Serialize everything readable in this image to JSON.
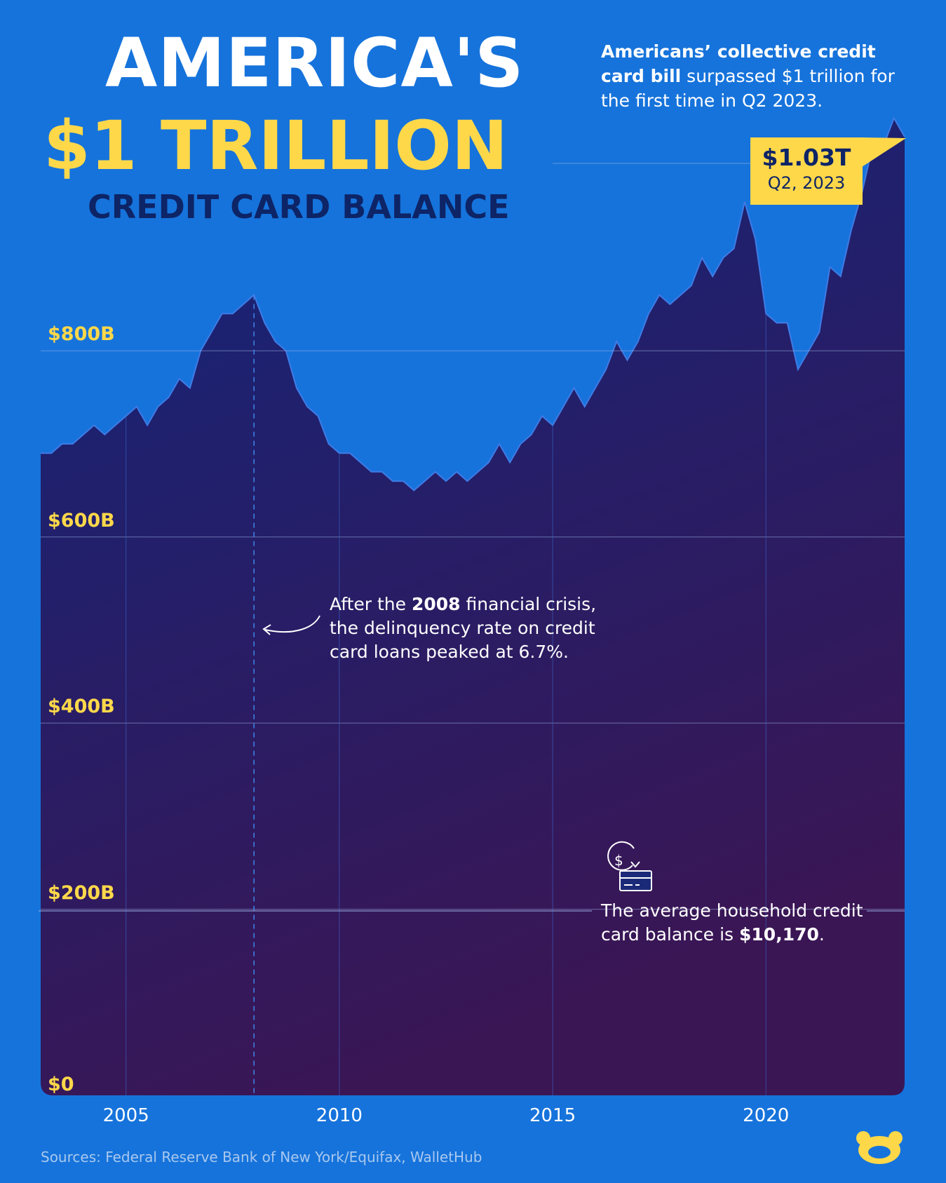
{
  "header": {
    "title_line1": "AMERICA'S",
    "title_line2": "$1 TRILLION",
    "title_line3": "CREDIT CARD BALANCE",
    "subtitle_bold": "Americans’ collective credit card bill",
    "subtitle_rest": " surpassed $1 trillion for the first time in Q2 2023."
  },
  "callout": {
    "value": "$1.03T",
    "date": "Q2, 2023"
  },
  "annotations": {
    "crisis_pre": "After the ",
    "crisis_bold": "2008",
    "crisis_post": " financial crisis, the delinquency rate on credit card loans peaked at 6.7%.",
    "household_pre": "The average household credit card balance is ",
    "household_bold": "$10,170",
    "household_post": "."
  },
  "sources": "Sources: Federal Reserve Bank of New York/Equifax, WalletHub",
  "colors": {
    "background": "#1673db",
    "accent": "#ffd84a",
    "area_top": "#12267a",
    "area_bottom": "#3a1655"
  },
  "icons": {
    "brand": "visual-capitalist-logo-icon",
    "credit_card": "dollar-credit-card-icon",
    "arrow": "curved-arrow-icon"
  },
  "chart_data": {
    "type": "area",
    "title": "AMERICA'S $1 TRILLION CREDIT CARD BALANCE",
    "ylabel": "",
    "xlabel": "",
    "ylim": [
      0,
      1030
    ],
    "xlim": [
      2003,
      2023.25
    ],
    "yticks": [
      0,
      200,
      400,
      600,
      800
    ],
    "ytick_labels": [
      "$0",
      "$200B",
      "$400B",
      "$600B",
      "$800B"
    ],
    "xticks": [
      2005,
      2010,
      2015,
      2020
    ],
    "xtick_labels": [
      "2005",
      "2010",
      "2015",
      "2020"
    ],
    "grid": true,
    "marker_line_x": 2008.0,
    "series": [
      {
        "x": [
          2003.0,
          2003.25,
          2003.5,
          2003.75,
          2004.0,
          2004.25,
          2004.5,
          2004.75,
          2005.0,
          2005.25,
          2005.5,
          2005.75,
          2006.0,
          2006.25,
          2006.5,
          2006.75,
          2007.0,
          2007.25,
          2007.5,
          2007.75,
          2008.0,
          2008.25,
          2008.5,
          2008.75,
          2009.0,
          2009.25,
          2009.5,
          2009.75,
          2010.0,
          2010.25,
          2010.5,
          2010.75,
          2011.0,
          2011.25,
          2011.5,
          2011.75,
          2012.0,
          2012.25,
          2012.5,
          2012.75,
          2013.0,
          2013.25,
          2013.5,
          2013.75,
          2014.0,
          2014.25,
          2014.5,
          2014.75,
          2015.0,
          2015.25,
          2015.5,
          2015.75,
          2016.0,
          2016.25,
          2016.5,
          2016.75,
          2017.0,
          2017.25,
          2017.5,
          2017.75,
          2018.0,
          2018.25,
          2018.5,
          2018.75,
          2019.0,
          2019.25,
          2019.5,
          2019.75,
          2020.0,
          2020.25,
          2020.5,
          2020.75,
          2021.0,
          2021.25,
          2021.5,
          2021.75,
          2022.0,
          2022.25,
          2022.5,
          2022.75,
          2023.0,
          2023.25
        ],
        "y": [
          690,
          690,
          700,
          700,
          710,
          720,
          710,
          720,
          730,
          740,
          720,
          740,
          750,
          770,
          760,
          800,
          820,
          840,
          840,
          850,
          860,
          830,
          810,
          800,
          760,
          740,
          730,
          700,
          690,
          690,
          680,
          670,
          670,
          660,
          660,
          650,
          660,
          670,
          660,
          670,
          660,
          670,
          680,
          700,
          680,
          700,
          710,
          730,
          720,
          740,
          760,
          740,
          760,
          780,
          810,
          790,
          810,
          840,
          860,
          850,
          860,
          870,
          900,
          880,
          900,
          910,
          960,
          920,
          840,
          830,
          830,
          780,
          800,
          820,
          890,
          880,
          930,
          970,
          1020,
          1020,
          1050,
          1030
        ]
      }
    ]
  }
}
